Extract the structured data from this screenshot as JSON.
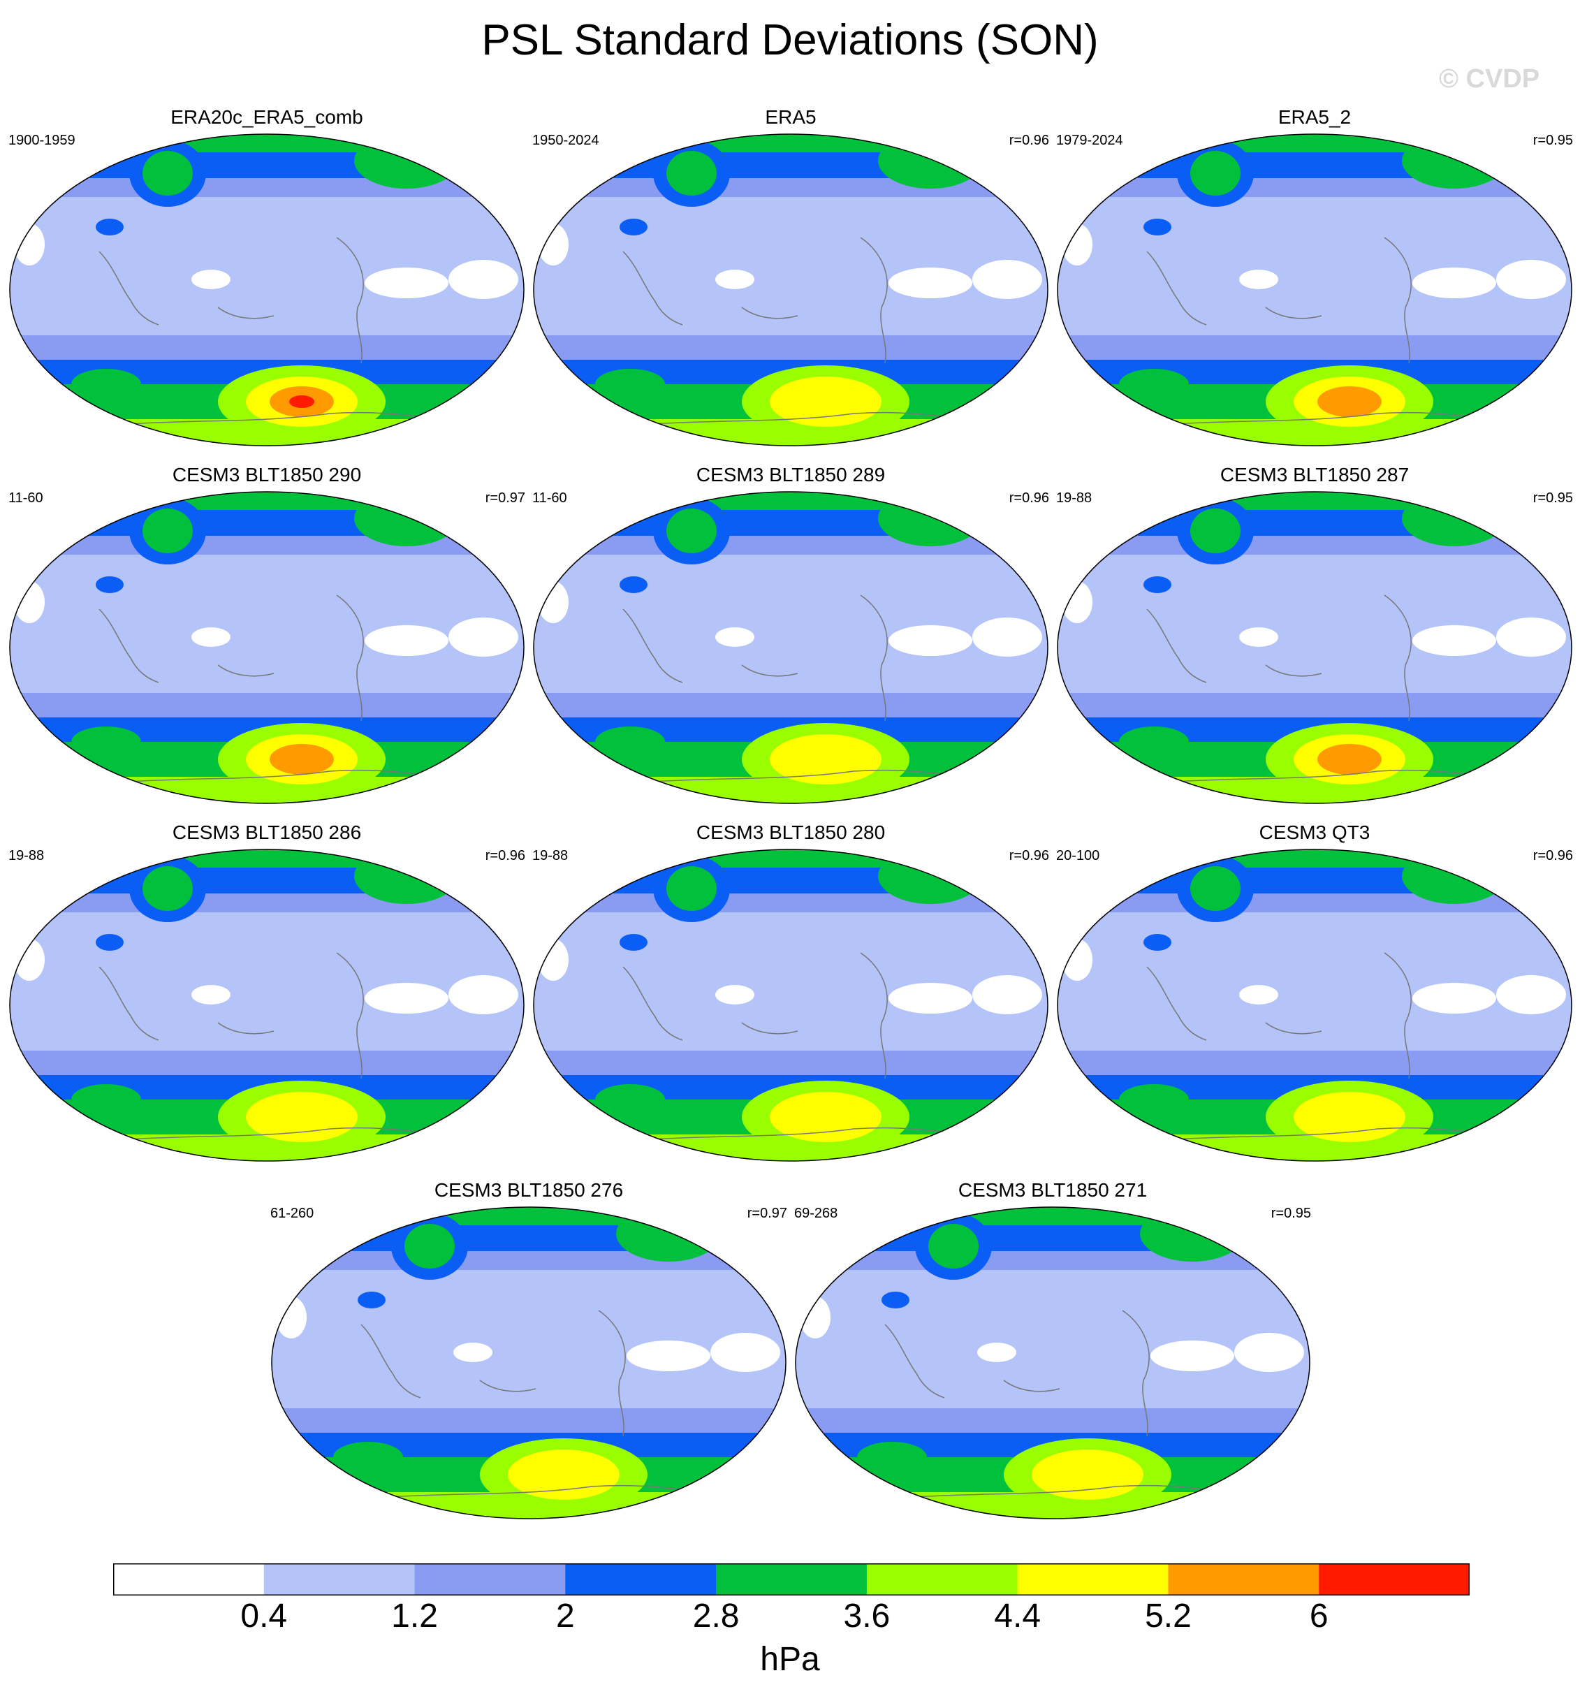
{
  "title": "PSL Standard Deviations (SON)",
  "watermark": "© CVDP",
  "colorbar": {
    "colors": [
      "#ffffff",
      "#b4c3f8",
      "#8a9cf2",
      "#0a5ef5",
      "#00c03c",
      "#99ff00",
      "#ffff00",
      "#ff9a00",
      "#ff1a00"
    ],
    "labels": [
      "0.4",
      "1.2",
      "2",
      "2.8",
      "3.6",
      "4.4",
      "5.2",
      "6"
    ],
    "units": "hPa"
  },
  "panels": [
    {
      "title": "ERA20c_ERA5_comb",
      "years": "1900-1959",
      "r": "",
      "sh_level": 8
    },
    {
      "title": "ERA5",
      "years": "1950-2024",
      "r": "r=0.96",
      "sh_level": 6
    },
    {
      "title": "ERA5_2",
      "years": "1979-2024",
      "r": "r=0.95",
      "sh_level": 7
    },
    {
      "title": "CESM3 BLT1850 290",
      "years": "11-60",
      "r": "r=0.97",
      "sh_level": 7
    },
    {
      "title": "CESM3 BLT1850 289",
      "years": "11-60",
      "r": "r=0.96",
      "sh_level": 6
    },
    {
      "title": "CESM3 BLT1850 287",
      "years": "19-88",
      "r": "r=0.95",
      "sh_level": 7
    },
    {
      "title": "CESM3 BLT1850 286",
      "years": "19-88",
      "r": "r=0.96",
      "sh_level": 6
    },
    {
      "title": "CESM3 BLT1850 280",
      "years": "19-88",
      "r": "r=0.96",
      "sh_level": 6
    },
    {
      "title": "CESM3 QT3",
      "years": "20-100",
      "r": "r=0.96",
      "sh_level": 6
    },
    {
      "title": "CESM3 BLT1850 276",
      "years": "61-260",
      "r": "r=0.97",
      "sh_level": 6
    },
    {
      "title": "CESM3 BLT1850 271",
      "years": "69-268",
      "r": "r=0.95",
      "sh_level": 6
    }
  ],
  "chart_data": {
    "type": "heatmap",
    "title": "PSL Standard Deviations (SON)",
    "units": "hPa",
    "contour_levels": [
      0.4,
      1.2,
      2,
      2.8,
      3.6,
      4.4,
      5.2,
      6
    ],
    "projection": "global map, Pacific-centered",
    "panel_count": 11
  }
}
